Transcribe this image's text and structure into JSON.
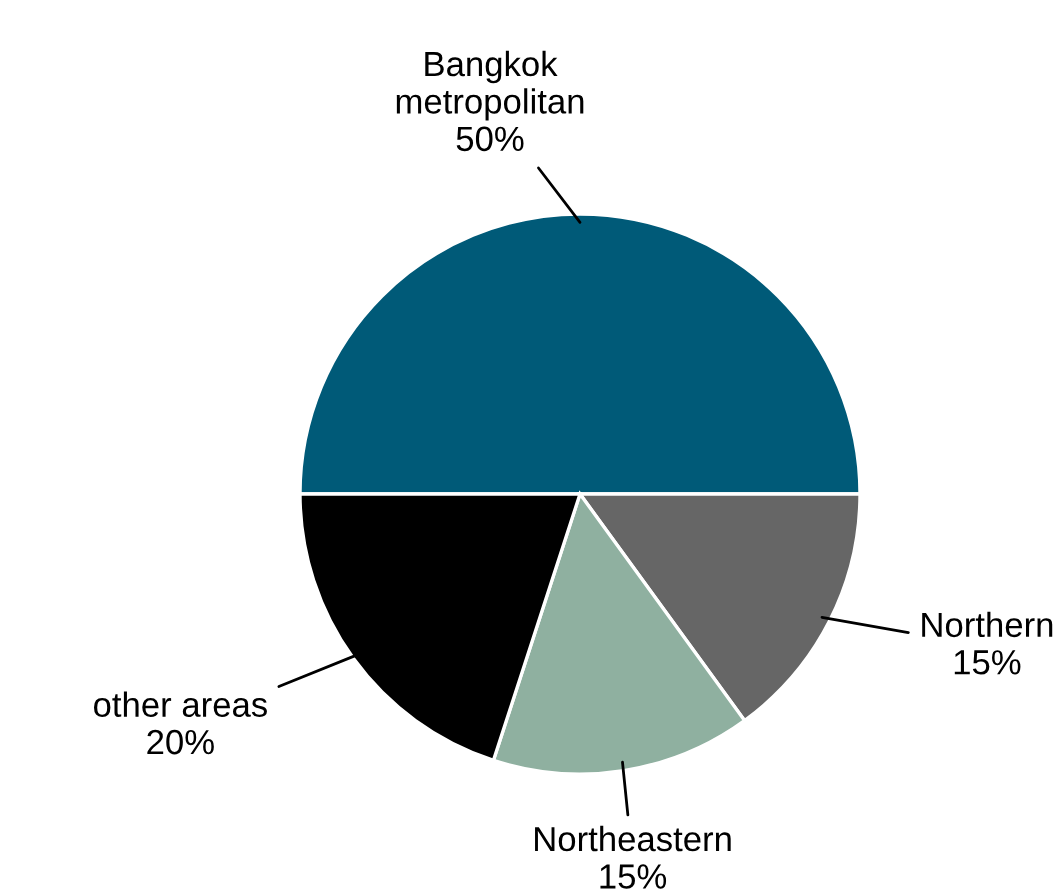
{
  "chart_data": {
    "type": "pie",
    "categories": [
      "Bangkok metropolitan",
      "Northern",
      "Northeastern",
      "other areas"
    ],
    "values": [
      50,
      15,
      15,
      20
    ],
    "colors": [
      "#005a78",
      "#666666",
      "#8fb0a0",
      "#000000"
    ],
    "value_labels": [
      "50%",
      "15%",
      "15%",
      "20%"
    ]
  }
}
